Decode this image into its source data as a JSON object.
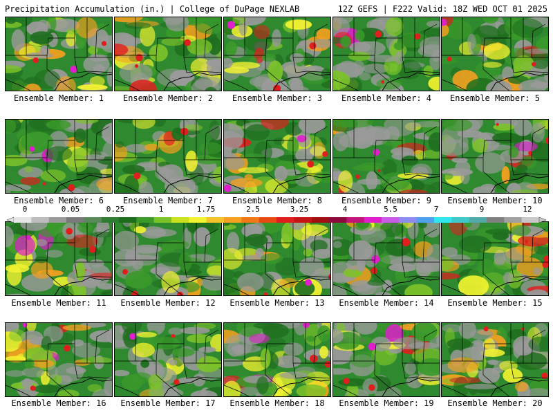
{
  "header": {
    "left_title": "Precipitation Accumulation (in.) | College of DuPage NEXLAB",
    "right_title": "12Z GEFS | F222 Valid: 18Z WED OCT 01 2025"
  },
  "members": [
    {
      "label": "Ensemble Member: 1",
      "number": 1
    },
    {
      "label": "Ensemble Member: 2",
      "number": 2
    },
    {
      "label": "Ensemble Member: 3",
      "number": 3
    },
    {
      "label": "Ensemble Member: 4",
      "number": 4
    },
    {
      "label": "Ensemble Member: 5",
      "number": 5
    },
    {
      "label": "Ensemble Member: 6",
      "number": 6
    },
    {
      "label": "Ensemble Member: 7",
      "number": 7
    },
    {
      "label": "Ensemble Member: 8",
      "number": 8
    },
    {
      "label": "Ensemble Member: 9",
      "number": 9
    },
    {
      "label": "Ensemble Member: 10",
      "number": 10
    },
    {
      "label": "Ensemble Member: 11",
      "number": 11
    },
    {
      "label": "Ensemble Member: 12",
      "number": 12
    },
    {
      "label": "Ensemble Member: 13",
      "number": 13
    },
    {
      "label": "Ensemble Member: 14",
      "number": 14
    },
    {
      "label": "Ensemble Member: 15",
      "number": 15
    },
    {
      "label": "Ensemble Member: 16",
      "number": 16
    },
    {
      "label": "Ensemble Member: 17",
      "number": 17
    },
    {
      "label": "Ensemble Member: 18",
      "number": 18
    },
    {
      "label": "Ensemble Member: 19",
      "number": 19
    },
    {
      "label": "Ensemble Member: 20",
      "number": 20
    }
  ],
  "colorbar": {
    "labels": [
      "0",
      "0.05",
      "0.25",
      "1",
      "1.75",
      "2.5",
      "3.25",
      "4",
      "5.5",
      "7",
      "9",
      "12"
    ],
    "colors": [
      "#e6e6e6",
      "#bdbdbd",
      "#9a9a9a",
      "#7a7a7a",
      "#5a8a5a",
      "#2e7d32",
      "#1b6e1b",
      "#3a9a2a",
      "#7cc22a",
      "#c8e01e",
      "#f2f230",
      "#f5c22a",
      "#f5a020",
      "#f07818",
      "#e84a14",
      "#e01e1e",
      "#c41414",
      "#a01010",
      "#8c0a3c",
      "#c0147a",
      "#e01ecc",
      "#c85ae6",
      "#8c8cf0",
      "#50a0f0",
      "#30e6f0",
      "#40c8c8",
      "#50a8a8",
      "#808080",
      "#a0a0a0",
      "#c8c8c8"
    ],
    "field_colors": {
      "gray": "#9a9a9a",
      "dark_green": "#1f6e1f",
      "green": "#3a9a2a",
      "light_green": "#7cc22a",
      "yellow": "#f2f230",
      "orange": "#f5a020",
      "red": "#e01e1e",
      "magenta": "#e01ecc",
      "cyan": "#30e6f0",
      "background": "#2f8a2f"
    }
  }
}
